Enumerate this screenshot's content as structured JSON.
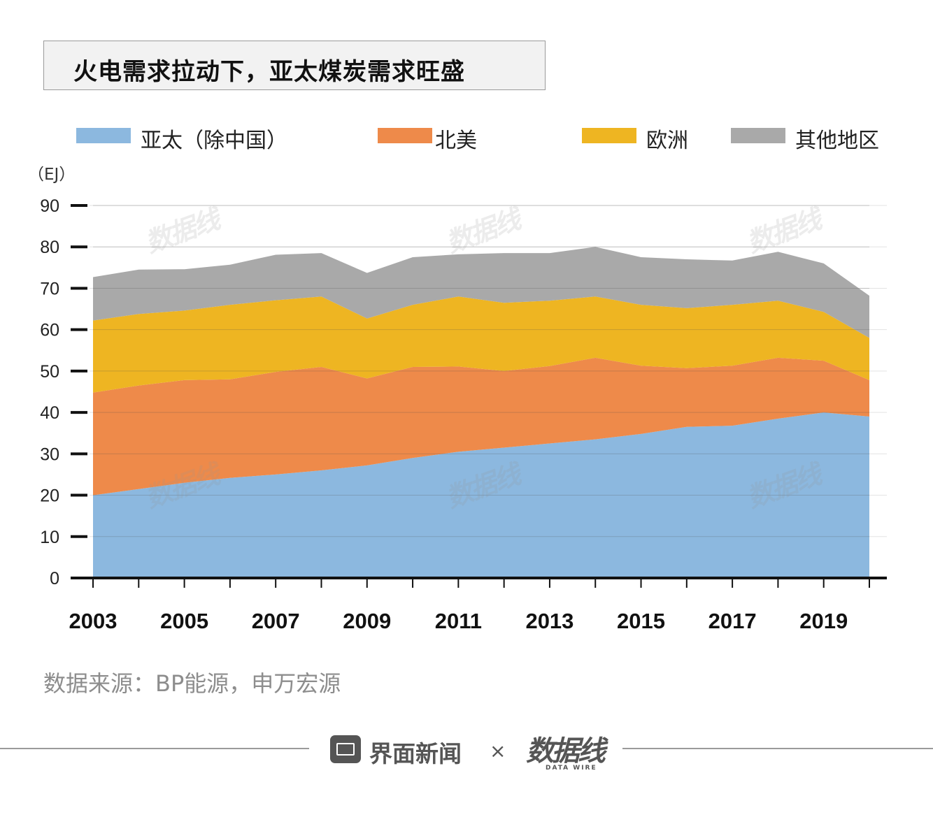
{
  "title": "火电需求拉动下，亚太煤炭需求旺盛",
  "unit_label": "（EJ）",
  "source_text": "数据来源：BP能源，申万宏源",
  "footer": {
    "brand_name": "界面新闻",
    "times_symbol": "×",
    "partner_logo_text": "数据线",
    "partner_logo_sub": "DATA WIRE"
  },
  "watermark_text": "数据线",
  "colors": {
    "asia_pacific": "#8cb8df",
    "north_america": "#ee8a4a",
    "europe": "#eeb522",
    "other": "#a9a9a9",
    "axis": "#111111",
    "grid": "#e3e3e3"
  },
  "chart_data": {
    "type": "area",
    "stacked": true,
    "title": "火电需求拉动下，亚太煤炭需求旺盛",
    "xlabel": "",
    "ylabel": "（EJ）",
    "ylim": [
      0,
      90
    ],
    "yticks": [
      "0",
      "10",
      "20",
      "30",
      "40",
      "50",
      "60",
      "70",
      "80",
      "90"
    ],
    "xticks": [
      "2003",
      "2005",
      "2007",
      "2009",
      "2011",
      "2013",
      "2015",
      "2017",
      "2019"
    ],
    "legend_position": "top",
    "grid": true,
    "x": [
      2003,
      2004,
      2005,
      2006,
      2007,
      2008,
      2009,
      2010,
      2011,
      2012,
      2013,
      2014,
      2015,
      2016,
      2017,
      2018,
      2019,
      2020
    ],
    "series": [
      {
        "name": "亚太（除中国）",
        "color_key": "asia_pacific",
        "values": [
          20.0,
          21.5,
          23.0,
          24.2,
          25.0,
          26.0,
          27.2,
          29.0,
          30.5,
          31.5,
          32.5,
          33.5,
          34.8,
          36.5,
          36.8,
          38.5,
          40.0,
          39.0
        ]
      },
      {
        "name": "北美",
        "color_key": "north_america",
        "values": [
          24.8,
          25.0,
          24.8,
          23.8,
          24.8,
          25.0,
          21.0,
          22.0,
          20.6,
          18.5,
          18.7,
          19.7,
          16.5,
          14.2,
          14.5,
          14.7,
          12.5,
          8.8
        ]
      },
      {
        "name": "欧洲",
        "color_key": "europe",
        "values": [
          17.4,
          17.3,
          16.8,
          18.0,
          17.3,
          17.0,
          14.5,
          15.0,
          16.9,
          16.5,
          15.8,
          14.8,
          14.7,
          14.5,
          14.7,
          13.8,
          11.8,
          10.2
        ]
      },
      {
        "name": "其他地区",
        "color_key": "other",
        "values": [
          10.5,
          10.7,
          10.0,
          9.7,
          11.0,
          10.5,
          11.0,
          11.5,
          10.2,
          12.0,
          11.5,
          12.0,
          11.5,
          11.8,
          10.7,
          11.8,
          11.7,
          10.2
        ]
      }
    ]
  }
}
